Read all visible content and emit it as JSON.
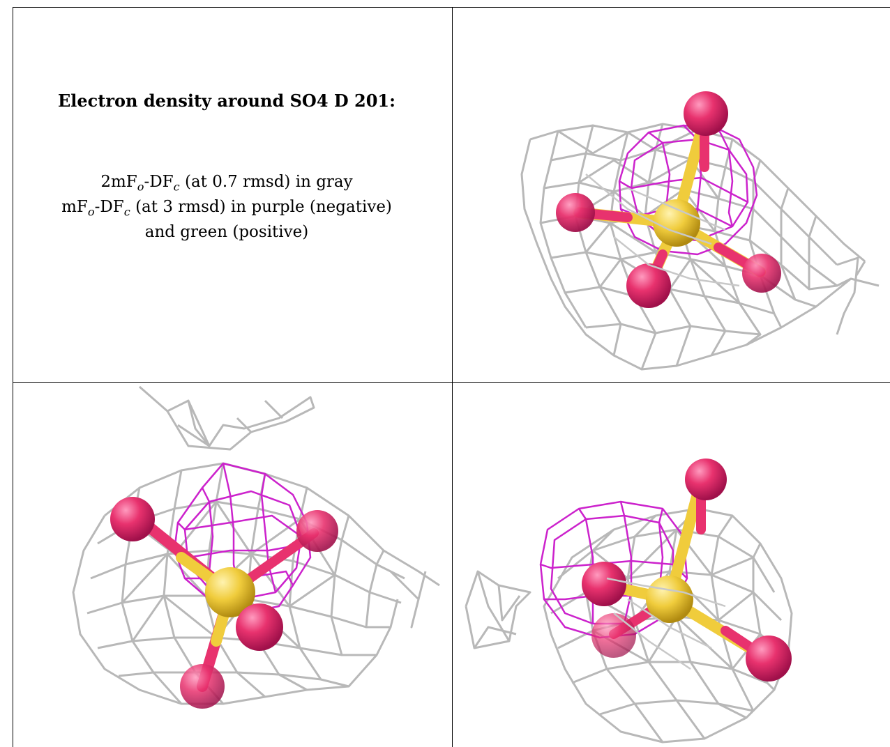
{
  "caption": {
    "title": "Electron density around SO4 D 201:",
    "map_2fo": {
      "prefix": "2mF",
      "sub_o": "o",
      "mid": "-DF",
      "sub_c": "c",
      "suffix": " (at 0.7 rmsd) in gray"
    },
    "map_fo": {
      "prefix": "mF",
      "sub_o": "o",
      "mid": "-DF",
      "sub_c": "c",
      "suffix": " (at 3 rmsd) in purple (negative)"
    },
    "line3": "and green (positive)"
  },
  "colors": {
    "mesh_gray": "#b8b8b8",
    "mesh_purple": "#cc22cc",
    "oxygen": "#e8326e",
    "sulfur": "#f0cc3c",
    "border": "#000000"
  },
  "panels": [
    {
      "name": "view-top-right"
    },
    {
      "name": "view-bottom-left"
    },
    {
      "name": "view-bottom-right"
    }
  ]
}
